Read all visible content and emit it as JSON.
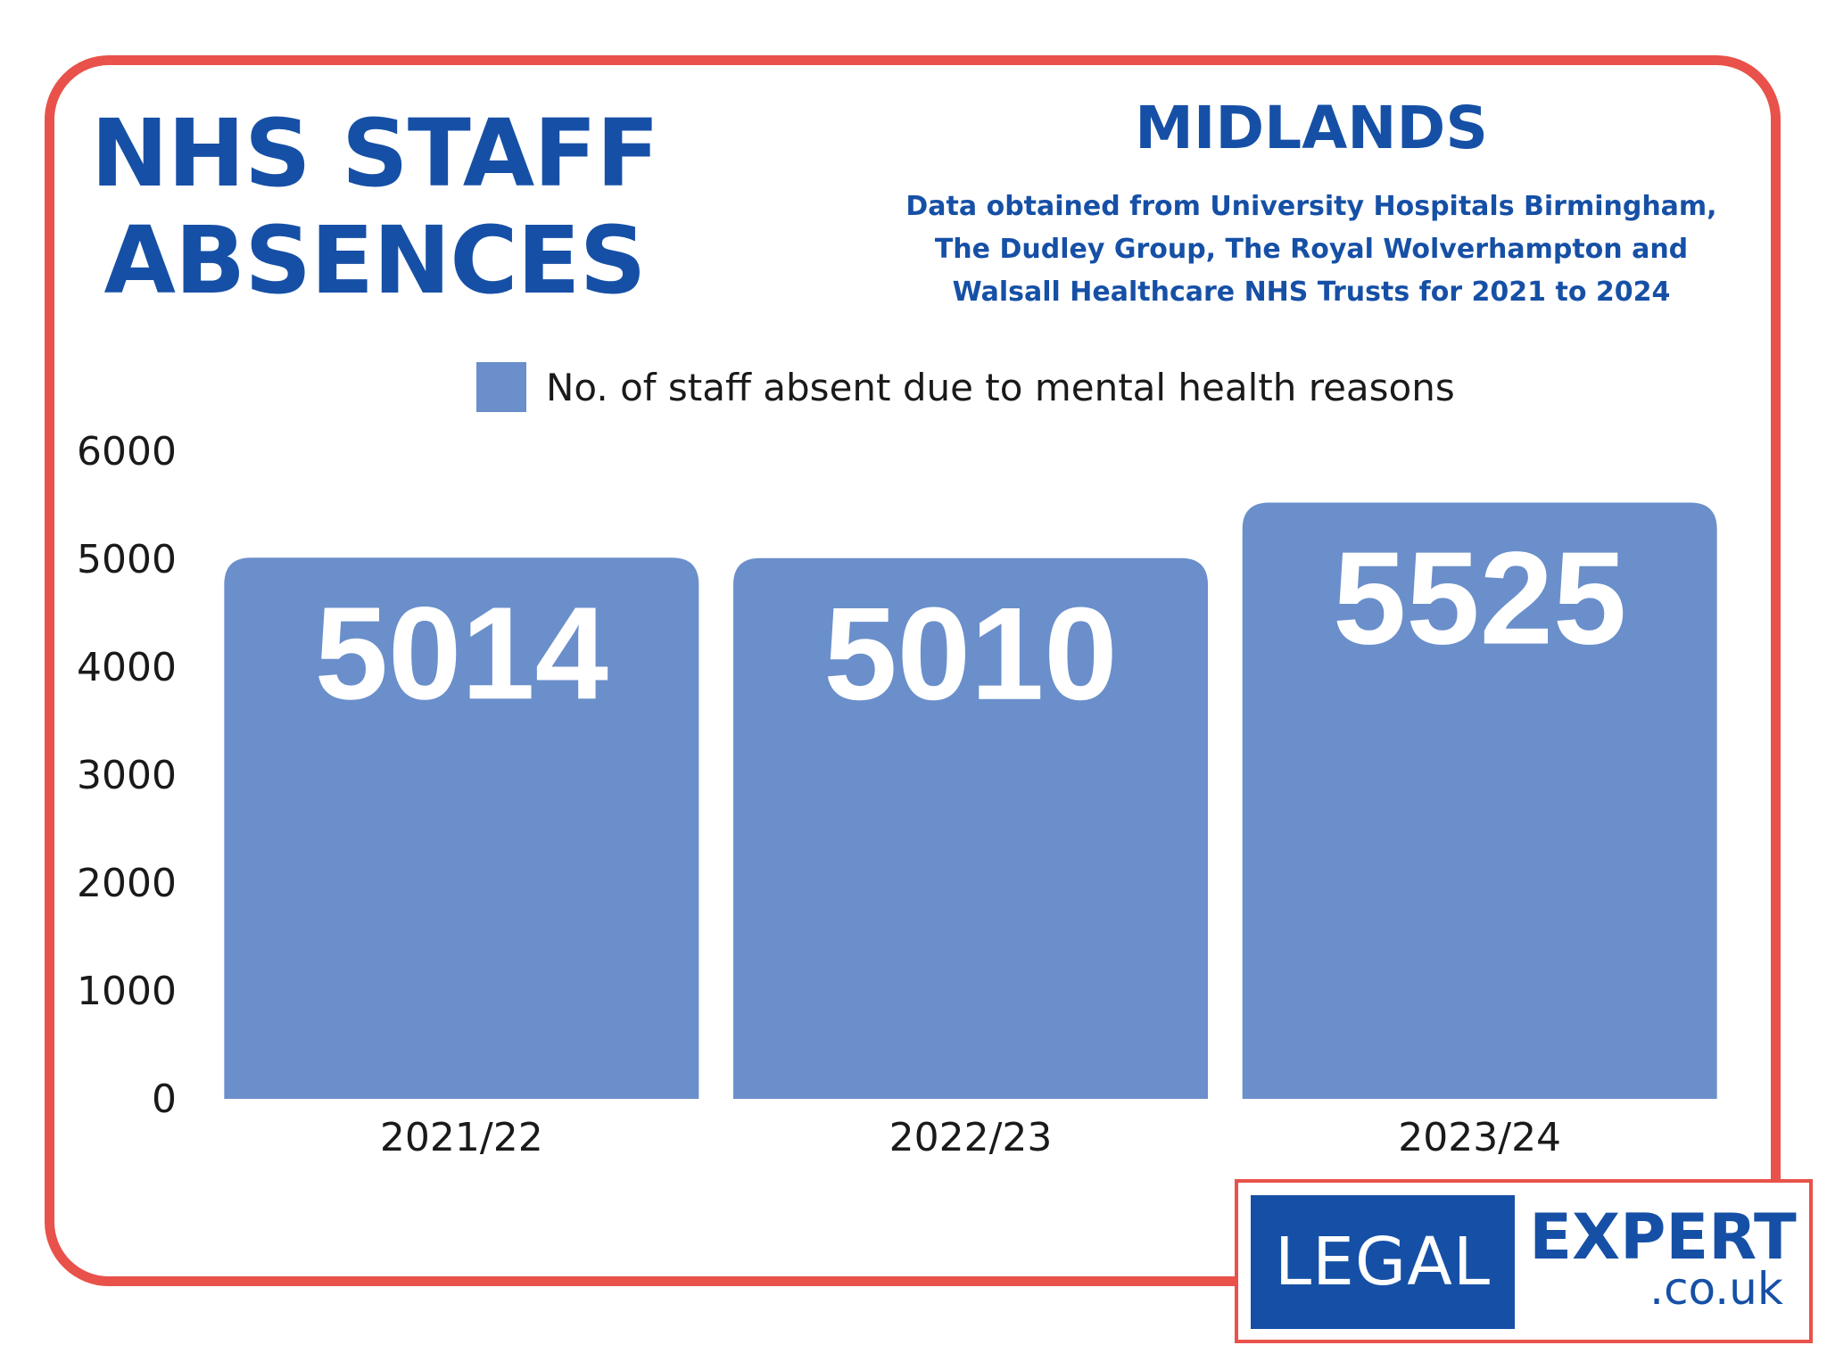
{
  "title_lines": [
    "NHS STAFF",
    "ABSENCES"
  ],
  "region": "MIDLANDS",
  "source_note": [
    "Data obtained from University Hospitals Birmingham,",
    "The Dudley Group, The Royal Wolverhampton and",
    "Walsall Healthcare NHS Trusts for 2021 to 2024"
  ],
  "logo": {
    "left_text": "LEGAL",
    "right_text": "EXPERT",
    "domain_text": ".co.uk"
  },
  "colors": {
    "brand_blue": "#1650a6",
    "frame_red": "#e8524a",
    "bar_fill": "#6a8fcb"
  },
  "chart_data": {
    "type": "bar",
    "categories": [
      "2021/22",
      "2022/23",
      "2023/24"
    ],
    "series": [
      {
        "name": "No. of staff absent due to mental health reasons",
        "values": [
          5014,
          5010,
          5525
        ],
        "color": "#6a8fcb"
      }
    ],
    "data_labels": [
      "5014",
      "5010",
      "5525"
    ],
    "ylim": [
      0,
      6000
    ],
    "yticks": [
      0,
      1000,
      2000,
      3000,
      4000,
      5000,
      6000
    ],
    "ytick_labels": [
      "0",
      "1000",
      "2000",
      "3000",
      "4000",
      "5000",
      "6000"
    ],
    "xlabel": "",
    "ylabel": "",
    "legend_position": "top-center",
    "grid": false
  }
}
